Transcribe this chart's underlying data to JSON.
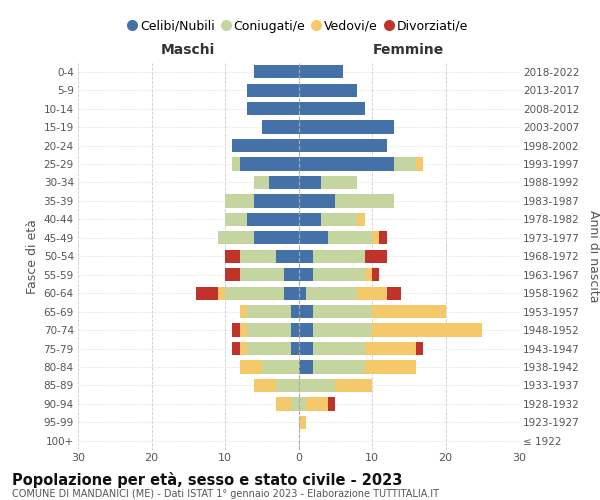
{
  "age_groups": [
    "100+",
    "95-99",
    "90-94",
    "85-89",
    "80-84",
    "75-79",
    "70-74",
    "65-69",
    "60-64",
    "55-59",
    "50-54",
    "45-49",
    "40-44",
    "35-39",
    "30-34",
    "25-29",
    "20-24",
    "15-19",
    "10-14",
    "5-9",
    "0-4"
  ],
  "birth_years": [
    "≤ 1922",
    "1923-1927",
    "1928-1932",
    "1933-1937",
    "1938-1942",
    "1943-1947",
    "1948-1952",
    "1953-1957",
    "1958-1962",
    "1963-1967",
    "1968-1972",
    "1973-1977",
    "1978-1982",
    "1983-1987",
    "1988-1992",
    "1993-1997",
    "1998-2002",
    "2003-2007",
    "2008-2012",
    "2013-2017",
    "2018-2022"
  ],
  "maschi_celibi": [
    0,
    0,
    0,
    0,
    0,
    1,
    1,
    1,
    2,
    2,
    3,
    6,
    7,
    6,
    4,
    8,
    9,
    5,
    7,
    7,
    6
  ],
  "maschi_coniugati": [
    0,
    0,
    1,
    3,
    5,
    6,
    6,
    6,
    8,
    6,
    5,
    5,
    3,
    4,
    2,
    1,
    0,
    0,
    0,
    0,
    0
  ],
  "maschi_vedovi": [
    0,
    0,
    2,
    3,
    3,
    1,
    1,
    1,
    1,
    0,
    0,
    0,
    0,
    0,
    0,
    0,
    0,
    0,
    0,
    0,
    0
  ],
  "maschi_divorziati": [
    0,
    0,
    0,
    0,
    0,
    1,
    1,
    0,
    3,
    2,
    2,
    0,
    0,
    0,
    0,
    0,
    0,
    0,
    0,
    0,
    0
  ],
  "femmine_celibi": [
    0,
    0,
    0,
    0,
    2,
    2,
    2,
    2,
    1,
    2,
    2,
    4,
    3,
    5,
    3,
    13,
    12,
    13,
    9,
    8,
    6
  ],
  "femmine_coniugati": [
    0,
    0,
    1,
    5,
    7,
    7,
    8,
    8,
    7,
    7,
    7,
    6,
    5,
    8,
    5,
    3,
    0,
    0,
    0,
    0,
    0
  ],
  "femmine_vedovi": [
    0,
    1,
    3,
    5,
    7,
    7,
    15,
    10,
    4,
    1,
    0,
    1,
    1,
    0,
    0,
    1,
    0,
    0,
    0,
    0,
    0
  ],
  "femmine_divorziati": [
    0,
    0,
    1,
    0,
    0,
    1,
    0,
    0,
    2,
    1,
    3,
    1,
    0,
    0,
    0,
    0,
    0,
    0,
    0,
    0,
    0
  ],
  "color_celibi": "#4472a8",
  "color_coniugati": "#c5d5a0",
  "color_vedovi": "#f5c96a",
  "color_divorziati": "#c0332a",
  "xlim": 30,
  "title": "Popolazione per età, sesso e stato civile - 2023",
  "subtitle": "COMUNE DI MANDANICI (ME) - Dati ISTAT 1° gennaio 2023 - Elaborazione TUTTITALIA.IT",
  "ylabel_left": "Fasce di età",
  "ylabel_right": "Anni di nascita",
  "label_maschi": "Maschi",
  "label_femmine": "Femmine",
  "legend_labels": [
    "Celibi/Nubili",
    "Coniugati/e",
    "Vedovi/e",
    "Divorziati/e"
  ],
  "grid_color": "#cccccc"
}
